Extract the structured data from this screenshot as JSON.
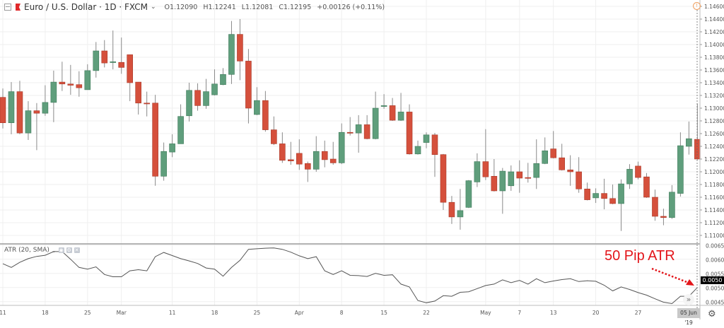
{
  "header": {
    "symbol": "Euro / U.S. Dollar · 1D · FXCM",
    "open": "O1.12090",
    "high": "H1.12241",
    "low": "L1.12081",
    "close": "C1.12195",
    "change": "+0.00126 (+0.11%)"
  },
  "indicator": {
    "label": "ATR (20, SMA)",
    "buttons": [
      "eye-icon",
      "settings-icon",
      "close-icon"
    ]
  },
  "annotation": {
    "text": "50 Pip ATR",
    "color": "#e3151a"
  },
  "colors": {
    "up": "#5f9e7c",
    "down": "#d5503c",
    "wick": "#8a8a8a",
    "atr_line": "#555555",
    "grid": "#efefef"
  },
  "time_axis": {
    "ticks": [
      {
        "label": "11",
        "index": 0
      },
      {
        "label": "18",
        "index": 5
      },
      {
        "label": "25",
        "index": 10
      },
      {
        "label": "Mar",
        "index": 14
      },
      {
        "label": "11",
        "index": 20
      },
      {
        "label": "18",
        "index": 25
      },
      {
        "label": "25",
        "index": 30
      },
      {
        "label": "Apr",
        "index": 35
      },
      {
        "label": "8",
        "index": 40
      },
      {
        "label": "15",
        "index": 45
      },
      {
        "label": "22",
        "index": 50
      },
      {
        "label": "May",
        "index": 57
      },
      {
        "label": "7",
        "index": 61
      },
      {
        "label": "13",
        "index": 65
      },
      {
        "label": "20",
        "index": 70
      },
      {
        "label": "27",
        "index": 75
      }
    ],
    "current_date": "05 Jun '19"
  },
  "price_axis": {
    "labels": [
      "1.14600",
      "1.14400",
      "1.14200",
      "1.14000",
      "1.13800",
      "1.13600",
      "1.13400",
      "1.13200",
      "1.13000",
      "1.12800",
      "1.12600",
      "1.12400",
      "1.12200",
      "1.12000",
      "1.11800",
      "1.11600",
      "1.11400",
      "1.11200",
      "1.11000"
    ]
  },
  "atr_axis": {
    "labels": [
      "0.0065",
      "0.0060",
      "0.0055",
      "0.0050",
      "0.0045"
    ],
    "last_value": "0.0050"
  },
  "chart_data": [
    {
      "type": "candlestick",
      "title": "Euro / U.S. Dollar · 1D · FXCM",
      "ylim": [
        1.109,
        1.147
      ],
      "ohlc": [
        [
          1.1317,
          1.1331,
          1.1268,
          1.1277
        ],
        [
          1.1277,
          1.1341,
          1.1259,
          1.1326
        ],
        [
          1.1326,
          1.1343,
          1.1259,
          1.1261
        ],
        [
          1.1261,
          1.1311,
          1.125,
          1.1296
        ],
        [
          1.1296,
          1.1308,
          1.1234,
          1.1292
        ],
        [
          1.1292,
          1.1336,
          1.1288,
          1.1309
        ],
        [
          1.1309,
          1.1359,
          1.1278,
          1.1341
        ],
        [
          1.1341,
          1.1373,
          1.1327,
          1.1338
        ],
        [
          1.1338,
          1.1368,
          1.1321,
          1.1336
        ],
        [
          1.1337,
          1.1358,
          1.1318,
          1.1332
        ],
        [
          1.1329,
          1.1369,
          1.1329,
          1.1359
        ],
        [
          1.1359,
          1.1404,
          1.1348,
          1.139
        ],
        [
          1.139,
          1.1407,
          1.1364,
          1.1371
        ],
        [
          1.1372,
          1.1422,
          1.1361,
          1.1373
        ],
        [
          1.1372,
          1.1411,
          1.1354,
          1.1364
        ],
        [
          1.1384,
          1.1384,
          1.1311,
          1.134
        ],
        [
          1.1341,
          1.1341,
          1.129,
          1.1308
        ],
        [
          1.1308,
          1.1326,
          1.1287,
          1.1307
        ],
        [
          1.1308,
          1.1321,
          1.1178,
          1.1193
        ],
        [
          1.1193,
          1.1246,
          1.1186,
          1.1232
        ],
        [
          1.1231,
          1.1259,
          1.1223,
          1.1244
        ],
        [
          1.1244,
          1.1306,
          1.1244,
          1.1287
        ],
        [
          1.1288,
          1.134,
          1.1279,
          1.1328
        ],
        [
          1.1328,
          1.1339,
          1.1296,
          1.1304
        ],
        [
          1.1304,
          1.1346,
          1.1299,
          1.1326
        ],
        [
          1.1321,
          1.1361,
          1.132,
          1.1338
        ],
        [
          1.1337,
          1.1363,
          1.1336,
          1.1353
        ],
        [
          1.1353,
          1.1437,
          1.1338,
          1.1416
        ],
        [
          1.1416,
          1.144,
          1.1344,
          1.1374
        ],
        [
          1.1374,
          1.1393,
          1.1276,
          1.13
        ],
        [
          1.129,
          1.1333,
          1.1289,
          1.1312
        ],
        [
          1.1312,
          1.1327,
          1.1263,
          1.1266
        ],
        [
          1.1266,
          1.1287,
          1.1242,
          1.1244
        ],
        [
          1.1244,
          1.1262,
          1.1214,
          1.1218
        ],
        [
          1.1219,
          1.1247,
          1.1211,
          1.1217
        ],
        [
          1.1229,
          1.1251,
          1.1203,
          1.1212
        ],
        [
          1.1213,
          1.1216,
          1.1184,
          1.1204
        ],
        [
          1.1204,
          1.1256,
          1.12,
          1.1232
        ],
        [
          1.1232,
          1.1249,
          1.1207,
          1.1219
        ],
        [
          1.122,
          1.1247,
          1.1211,
          1.1214
        ],
        [
          1.1214,
          1.1276,
          1.1212,
          1.1262
        ],
        [
          1.1262,
          1.1286,
          1.1257,
          1.1261
        ],
        [
          1.1261,
          1.1289,
          1.123,
          1.1274
        ],
        [
          1.1274,
          1.1289,
          1.1251,
          1.1252
        ],
        [
          1.1252,
          1.1326,
          1.1251,
          1.13
        ],
        [
          1.1303,
          1.1322,
          1.1299,
          1.1304
        ],
        [
          1.1304,
          1.1316,
          1.128,
          1.1281
        ],
        [
          1.1281,
          1.1324,
          1.128,
          1.1294
        ],
        [
          1.1294,
          1.1306,
          1.1227,
          1.1228
        ],
        [
          1.1228,
          1.1249,
          1.1227,
          1.124
        ],
        [
          1.1246,
          1.1262,
          1.1237,
          1.1258
        ],
        [
          1.1258,
          1.1261,
          1.1192,
          1.1227
        ],
        [
          1.1227,
          1.1228,
          1.114,
          1.1152
        ],
        [
          1.1152,
          1.1162,
          1.1118,
          1.1129
        ],
        [
          1.1129,
          1.1173,
          1.1109,
          1.1139
        ],
        [
          1.1144,
          1.1187,
          1.1143,
          1.1186
        ],
        [
          1.1184,
          1.1229,
          1.1176,
          1.1216
        ],
        [
          1.1216,
          1.1267,
          1.1187,
          1.1192
        ],
        [
          1.1193,
          1.122,
          1.1169,
          1.117
        ],
        [
          1.117,
          1.1206,
          1.1134,
          1.1201
        ],
        [
          1.1178,
          1.121,
          1.117,
          1.12
        ],
        [
          1.12,
          1.1218,
          1.1167,
          1.119
        ],
        [
          1.1191,
          1.1214,
          1.1183,
          1.119
        ],
        [
          1.1191,
          1.1251,
          1.1173,
          1.1213
        ],
        [
          1.1213,
          1.1254,
          1.1212,
          1.1233
        ],
        [
          1.1236,
          1.1264,
          1.1221,
          1.1222
        ],
        [
          1.1222,
          1.1244,
          1.1202,
          1.1203
        ],
        [
          1.1203,
          1.1226,
          1.1178,
          1.12
        ],
        [
          1.12,
          1.1223,
          1.1167,
          1.1173
        ],
        [
          1.1173,
          1.1183,
          1.1155,
          1.1156
        ],
        [
          1.1159,
          1.1174,
          1.1151,
          1.1166
        ],
        [
          1.1166,
          1.1189,
          1.1141,
          1.1158
        ],
        [
          1.1158,
          1.118,
          1.1149,
          1.115
        ],
        [
          1.115,
          1.1188,
          1.1107,
          1.1181
        ],
        [
          1.1181,
          1.1212,
          1.1173,
          1.1204
        ],
        [
          1.1209,
          1.1216,
          1.1188,
          1.1191
        ],
        [
          1.1192,
          1.1198,
          1.1159,
          1.116
        ],
        [
          1.116,
          1.1172,
          1.1123,
          1.113
        ],
        [
          1.113,
          1.1142,
          1.1116,
          1.1128
        ],
        [
          1.1128,
          1.1179,
          1.1126,
          1.1168
        ],
        [
          1.1166,
          1.1262,
          1.1161,
          1.1241
        ],
        [
          1.124,
          1.1279,
          1.1227,
          1.1252
        ],
        [
          1.1251,
          1.1307,
          1.1219,
          1.122
        ]
      ]
    },
    {
      "type": "line",
      "title": "ATR (20, SMA)",
      "ylim": [
        0.00425,
        0.00655
      ],
      "values": [
        0.00584,
        0.00571,
        0.00589,
        0.00602,
        0.0061,
        0.00614,
        0.00627,
        0.00627,
        0.006,
        0.00571,
        0.00565,
        0.00573,
        0.00546,
        0.00538,
        0.00538,
        0.00559,
        0.00563,
        0.00559,
        0.00609,
        0.00624,
        0.00613,
        0.00602,
        0.00594,
        0.00585,
        0.00569,
        0.00565,
        0.0054,
        0.00571,
        0.00596,
        0.00635,
        0.00637,
        0.00639,
        0.0064,
        0.00635,
        0.00625,
        0.00612,
        0.00602,
        0.00609,
        0.00559,
        0.00546,
        0.00559,
        0.00543,
        0.00542,
        0.00539,
        0.0055,
        0.00543,
        0.00545,
        0.00512,
        0.00502,
        0.00454,
        0.00446,
        0.00452,
        0.00471,
        0.00469,
        0.00483,
        0.00485,
        0.00496,
        0.00507,
        0.00512,
        0.00527,
        0.00517,
        0.00525,
        0.00512,
        0.00531,
        0.00517,
        0.00523,
        0.00528,
        0.00531,
        0.00521,
        0.00524,
        0.00522,
        0.00508,
        0.00488,
        0.00502,
        0.00493,
        0.00482,
        0.00473,
        0.0046,
        0.00448,
        0.00443,
        0.00469,
        0.00469,
        0.005
      ]
    }
  ]
}
